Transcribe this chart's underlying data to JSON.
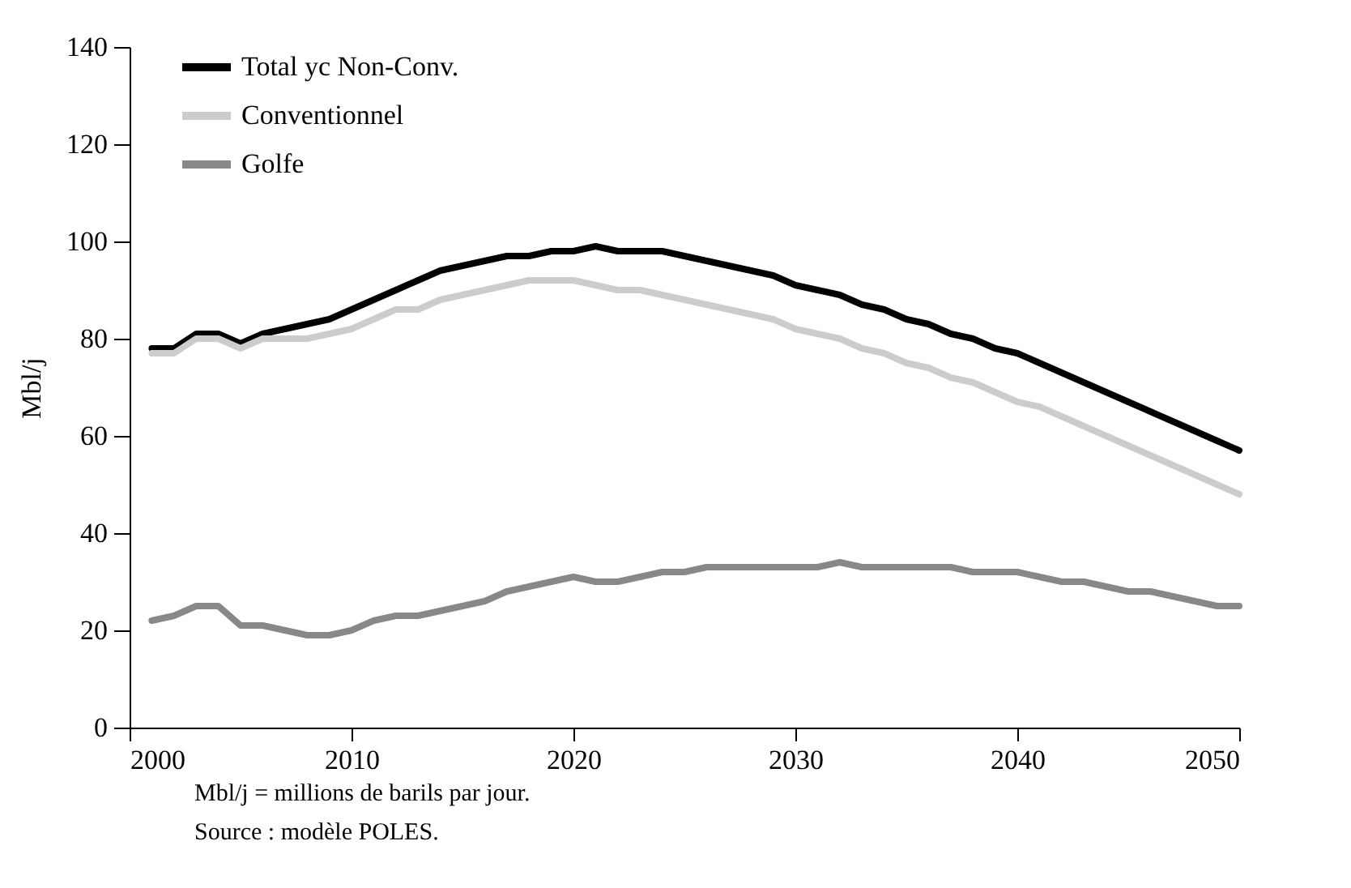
{
  "chart_data": {
    "type": "line",
    "ylabel": "Mbl/j",
    "x": [
      2001,
      2002,
      2003,
      2004,
      2005,
      2006,
      2007,
      2008,
      2009,
      2010,
      2011,
      2012,
      2013,
      2014,
      2015,
      2016,
      2017,
      2018,
      2019,
      2020,
      2021,
      2022,
      2023,
      2024,
      2025,
      2026,
      2027,
      2028,
      2029,
      2030,
      2031,
      2032,
      2033,
      2034,
      2035,
      2036,
      2037,
      2038,
      2039,
      2040,
      2041,
      2042,
      2043,
      2044,
      2045,
      2046,
      2047,
      2048,
      2049,
      2050
    ],
    "series": [
      {
        "name": "Total yc Non-Conv.",
        "color": "#000000",
        "values": [
          78,
          78,
          81,
          81,
          79,
          81,
          82,
          83,
          84,
          86,
          88,
          90,
          92,
          94,
          95,
          96,
          97,
          97,
          98,
          98,
          99,
          98,
          98,
          98,
          97,
          96,
          95,
          94,
          93,
          91,
          90,
          89,
          87,
          86,
          84,
          83,
          81,
          80,
          78,
          77,
          75,
          73,
          71,
          69,
          67,
          65,
          63,
          61,
          59,
          57
        ]
      },
      {
        "name": "Conventionnel",
        "color": "#cccccc",
        "values": [
          77,
          77,
          80,
          80,
          78,
          80,
          80,
          80,
          81,
          82,
          84,
          86,
          86,
          88,
          89,
          90,
          91,
          92,
          92,
          92,
          91,
          90,
          90,
          89,
          88,
          87,
          86,
          85,
          84,
          82,
          81,
          80,
          78,
          77,
          75,
          74,
          72,
          71,
          69,
          67,
          66,
          64,
          62,
          60,
          58,
          56,
          54,
          52,
          50,
          48
        ]
      },
      {
        "name": "Golfe",
        "color": "#888888",
        "values": [
          22,
          23,
          25,
          25,
          21,
          21,
          20,
          19,
          19,
          20,
          22,
          23,
          23,
          24,
          25,
          26,
          28,
          29,
          30,
          31,
          30,
          30,
          31,
          32,
          32,
          33,
          33,
          33,
          33,
          33,
          33,
          34,
          33,
          33,
          33,
          33,
          33,
          32,
          32,
          32,
          31,
          30,
          30,
          29,
          28,
          28,
          27,
          26,
          25,
          25
        ]
      }
    ],
    "xlim": [
      2000,
      2050
    ],
    "xticks": [
      2000,
      2010,
      2020,
      2030,
      2040,
      2050
    ],
    "ylim": [
      0,
      140
    ],
    "yticks": [
      0,
      20,
      40,
      60,
      80,
      100,
      120,
      140
    ],
    "grid": false,
    "legend": "top left",
    "marker": "none",
    "line_style": "solid",
    "annotations": [
      "Mbl/j = millions de barils par jour.",
      "Source : modèle POLES."
    ]
  }
}
